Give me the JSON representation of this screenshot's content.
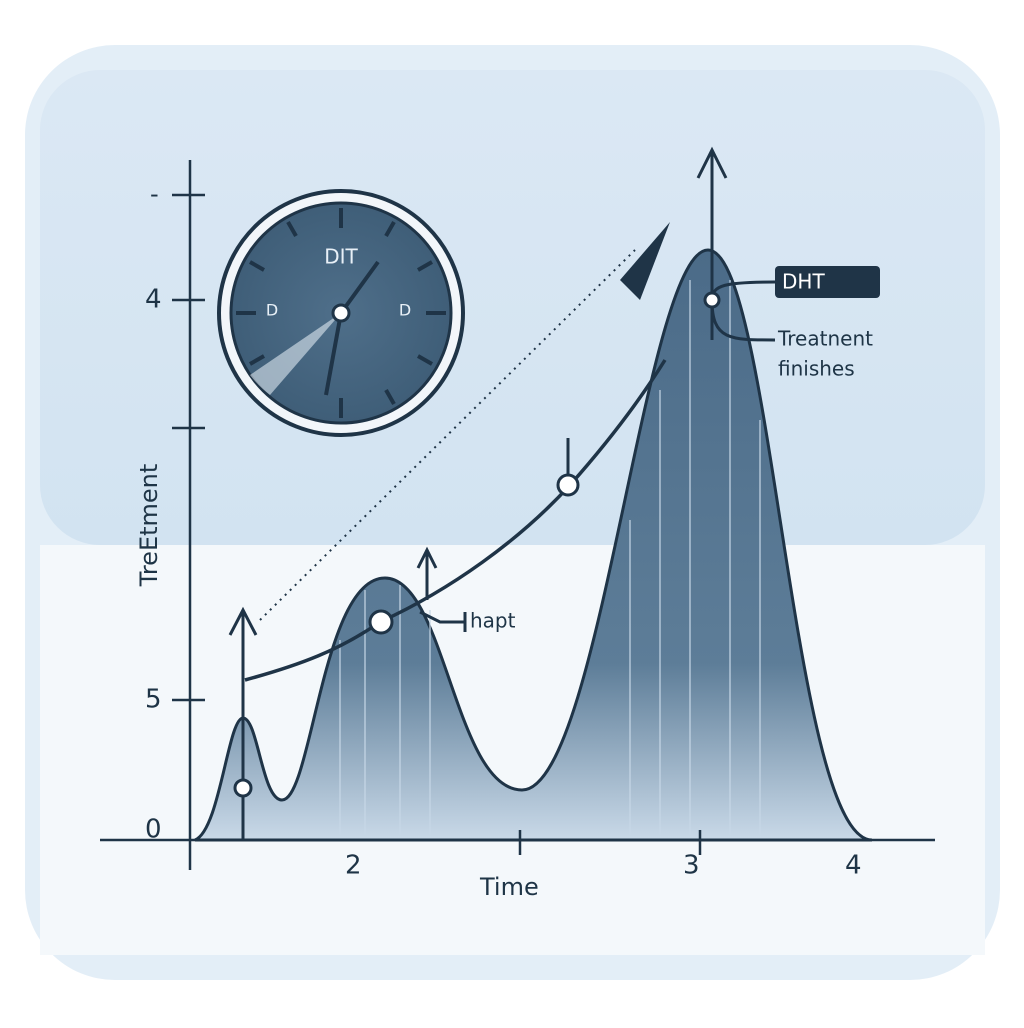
{
  "axes": {
    "y_label": "TreEtment",
    "x_label": "Time",
    "y_ticks": [
      "-",
      "4",
      "5",
      "0"
    ],
    "x_ticks": [
      "2",
      "3",
      "4"
    ]
  },
  "clock": {
    "top": "DIT",
    "left": "D",
    "right": "D"
  },
  "annotations": {
    "tag": "DHT",
    "note": [
      "Treatnent",
      "finishes"
    ],
    "marker": "hapt"
  }
}
